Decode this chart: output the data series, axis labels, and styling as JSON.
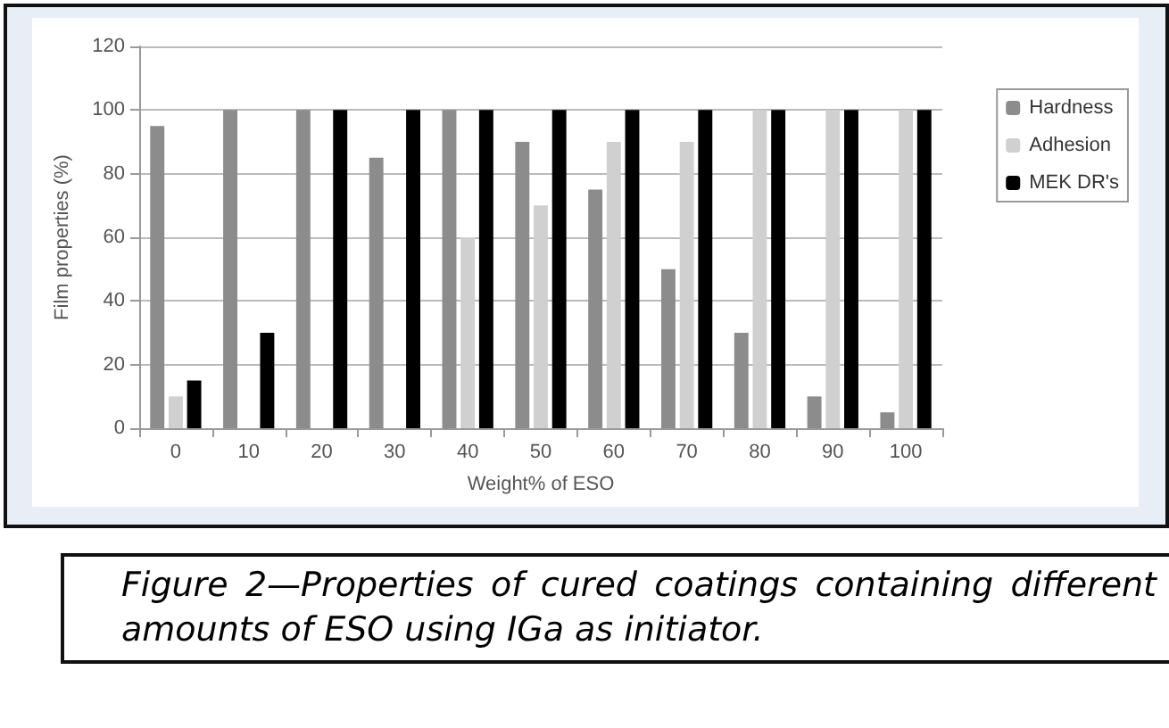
{
  "chart_data": {
    "type": "bar",
    "xlabel": "Weight% of ESO",
    "ylabel": "Film properties (%)",
    "categories": [
      "0",
      "10",
      "20",
      "30",
      "40",
      "50",
      "60",
      "70",
      "80",
      "90",
      "100"
    ],
    "series": [
      {
        "name": "Hardness",
        "color": "#8c8c8c",
        "values": [
          95,
          100,
          100,
          85,
          100,
          90,
          75,
          50,
          30,
          10,
          5
        ]
      },
      {
        "name": "Adhesion",
        "color": "#d0d0d0",
        "values": [
          10,
          0,
          0,
          0,
          60,
          70,
          90,
          90,
          100,
          100,
          100
        ]
      },
      {
        "name": "MEK DR's",
        "color": "#000000",
        "values": [
          15,
          30,
          100,
          100,
          100,
          100,
          100,
          100,
          100,
          100,
          100
        ]
      }
    ],
    "ylim": [
      0,
      120
    ],
    "yticks": [
      0,
      20,
      40,
      60,
      80,
      100,
      120
    ],
    "grid": "y",
    "legend": "right",
    "annotations": [
      "Figure 2—Properties of cured coatings containing different amounts of ESO using IGa as initiator."
    ]
  }
}
